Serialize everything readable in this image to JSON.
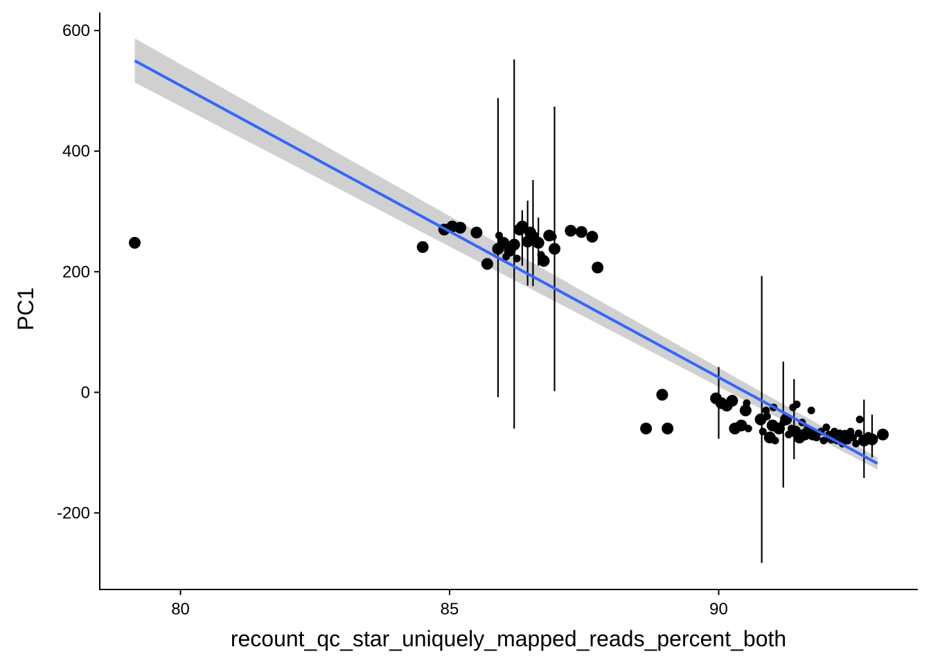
{
  "chart_data": {
    "type": "scatter",
    "title": "",
    "xlabel": "recount_qc_star_uniquely_mapped_reads_percent_both",
    "ylabel": "PC1",
    "xlim": [
      78.5,
      93.7
    ],
    "ylim": [
      -327,
      630
    ],
    "x_ticks": [
      80,
      85,
      90
    ],
    "x_tick_labels": [
      "80",
      "85",
      "90"
    ],
    "y_ticks": [
      600,
      400,
      200,
      0,
      -200
    ],
    "y_tick_labels": [
      "600",
      "400",
      "200",
      "0",
      "-200"
    ],
    "grid": false,
    "legend": "none",
    "colors": {
      "points": "#000000",
      "fit_line": "#3366FF",
      "ci_band": "#C8C8C8"
    },
    "fit": {
      "method": "lm",
      "x": [
        79.15,
        92.95
      ],
      "y": [
        550,
        -118
      ],
      "ci_upper": [
        587,
        -108
      ],
      "ci_lower": [
        514,
        -128
      ]
    },
    "points": [
      {
        "x": 79.15,
        "y": 248,
        "size": "large"
      },
      {
        "x": 84.5,
        "y": 241,
        "size": "large"
      },
      {
        "x": 84.9,
        "y": 270,
        "size": "large"
      },
      {
        "x": 85.05,
        "y": 275,
        "size": "large"
      },
      {
        "x": 85.2,
        "y": 273,
        "size": "large"
      },
      {
        "x": 85.5,
        "y": 265,
        "size": "large"
      },
      {
        "x": 85.7,
        "y": 213,
        "size": "large"
      },
      {
        "x": 85.9,
        "y": 238,
        "size": "large"
      },
      {
        "x": 85.92,
        "y": 260,
        "size": "small"
      },
      {
        "x": 86.0,
        "y": 248,
        "size": "large"
      },
      {
        "x": 86.05,
        "y": 225,
        "size": "small"
      },
      {
        "x": 86.12,
        "y": 235,
        "size": "large"
      },
      {
        "x": 86.2,
        "y": 245,
        "size": "large"
      },
      {
        "x": 86.25,
        "y": 222,
        "size": "small"
      },
      {
        "x": 86.3,
        "y": 270,
        "size": "large"
      },
      {
        "x": 86.35,
        "y": 275,
        "size": "large"
      },
      {
        "x": 86.45,
        "y": 250,
        "size": "large"
      },
      {
        "x": 86.5,
        "y": 265,
        "size": "large"
      },
      {
        "x": 86.55,
        "y": 258,
        "size": "large"
      },
      {
        "x": 86.65,
        "y": 248,
        "size": "large"
      },
      {
        "x": 86.7,
        "y": 228,
        "size": "small"
      },
      {
        "x": 86.75,
        "y": 218,
        "size": "large"
      },
      {
        "x": 86.85,
        "y": 260,
        "size": "large"
      },
      {
        "x": 86.92,
        "y": 258,
        "size": "small"
      },
      {
        "x": 86.95,
        "y": 238,
        "size": "large"
      },
      {
        "x": 87.25,
        "y": 268,
        "size": "large"
      },
      {
        "x": 87.45,
        "y": 266,
        "size": "large"
      },
      {
        "x": 87.65,
        "y": 258,
        "size": "large"
      },
      {
        "x": 87.75,
        "y": 207,
        "size": "large"
      },
      {
        "x": 88.65,
        "y": -60,
        "size": "large"
      },
      {
        "x": 88.95,
        "y": -4,
        "size": "large"
      },
      {
        "x": 89.05,
        "y": -60,
        "size": "large"
      },
      {
        "x": 89.95,
        "y": -10,
        "size": "large"
      },
      {
        "x": 90.05,
        "y": -18,
        "size": "large"
      },
      {
        "x": 90.15,
        "y": -22,
        "size": "large"
      },
      {
        "x": 90.25,
        "y": -14,
        "size": "large"
      },
      {
        "x": 90.3,
        "y": -60,
        "size": "large"
      },
      {
        "x": 90.42,
        "y": -55,
        "size": "large"
      },
      {
        "x": 90.5,
        "y": -30,
        "size": "large"
      },
      {
        "x": 90.52,
        "y": -18,
        "size": "small"
      },
      {
        "x": 90.55,
        "y": -60,
        "size": "small"
      },
      {
        "x": 90.78,
        "y": -45,
        "size": "large"
      },
      {
        "x": 90.82,
        "y": -65,
        "size": "small"
      },
      {
        "x": 90.88,
        "y": -30,
        "size": "small"
      },
      {
        "x": 90.9,
        "y": -40,
        "size": "small"
      },
      {
        "x": 90.95,
        "y": -75,
        "size": "large"
      },
      {
        "x": 91.0,
        "y": -55,
        "size": "large"
      },
      {
        "x": 91.02,
        "y": -25,
        "size": "small"
      },
      {
        "x": 91.05,
        "y": -80,
        "size": "small"
      },
      {
        "x": 91.12,
        "y": -60,
        "size": "large"
      },
      {
        "x": 91.2,
        "y": -50,
        "size": "small"
      },
      {
        "x": 91.25,
        "y": -45,
        "size": "large"
      },
      {
        "x": 91.3,
        "y": -70,
        "size": "small"
      },
      {
        "x": 91.35,
        "y": -60,
        "size": "small"
      },
      {
        "x": 91.38,
        "y": -25,
        "size": "small"
      },
      {
        "x": 91.42,
        "y": -65,
        "size": "large"
      },
      {
        "x": 91.45,
        "y": -20,
        "size": "small"
      },
      {
        "x": 91.5,
        "y": -75,
        "size": "large"
      },
      {
        "x": 91.55,
        "y": -50,
        "size": "small"
      },
      {
        "x": 91.6,
        "y": -70,
        "size": "large"
      },
      {
        "x": 91.65,
        "y": -60,
        "size": "small"
      },
      {
        "x": 91.72,
        "y": -30,
        "size": "small"
      },
      {
        "x": 91.75,
        "y": -70,
        "size": "large"
      },
      {
        "x": 91.82,
        "y": -75,
        "size": "small"
      },
      {
        "x": 91.9,
        "y": -65,
        "size": "small"
      },
      {
        "x": 91.95,
        "y": -80,
        "size": "small"
      },
      {
        "x": 92.0,
        "y": -58,
        "size": "small"
      },
      {
        "x": 92.05,
        "y": -70,
        "size": "small"
      },
      {
        "x": 92.1,
        "y": -75,
        "size": "large"
      },
      {
        "x": 92.15,
        "y": -65,
        "size": "small"
      },
      {
        "x": 92.2,
        "y": -80,
        "size": "small"
      },
      {
        "x": 92.25,
        "y": -68,
        "size": "small"
      },
      {
        "x": 92.3,
        "y": -85,
        "size": "small"
      },
      {
        "x": 92.35,
        "y": -72,
        "size": "large"
      },
      {
        "x": 92.4,
        "y": -80,
        "size": "small"
      },
      {
        "x": 92.45,
        "y": -65,
        "size": "small"
      },
      {
        "x": 92.5,
        "y": -75,
        "size": "small"
      },
      {
        "x": 92.55,
        "y": -85,
        "size": "small"
      },
      {
        "x": 92.6,
        "y": -68,
        "size": "small"
      },
      {
        "x": 92.62,
        "y": -45,
        "size": "small"
      },
      {
        "x": 92.7,
        "y": -80,
        "size": "large"
      },
      {
        "x": 92.78,
        "y": -72,
        "size": "small"
      },
      {
        "x": 92.85,
        "y": -78,
        "size": "large"
      },
      {
        "x": 93.05,
        "y": -70,
        "size": "large"
      }
    ],
    "error_bars": [
      {
        "x": 85.9,
        "ymin": -8,
        "ymax": 488
      },
      {
        "x": 86.2,
        "ymin": -60,
        "ymax": 552
      },
      {
        "x": 86.35,
        "ymin": 210,
        "ymax": 302
      },
      {
        "x": 86.45,
        "ymin": 177,
        "ymax": 318
      },
      {
        "x": 86.55,
        "ymin": 176,
        "ymax": 352
      },
      {
        "x": 86.65,
        "ymin": 210,
        "ymax": 290
      },
      {
        "x": 86.95,
        "ymin": 2,
        "ymax": 474
      },
      {
        "x": 90.0,
        "ymin": -77,
        "ymax": 42
      },
      {
        "x": 90.8,
        "ymin": -283,
        "ymax": 193
      },
      {
        "x": 91.2,
        "ymin": -158,
        "ymax": 51
      },
      {
        "x": 91.4,
        "ymin": -111,
        "ymax": 22
      },
      {
        "x": 92.7,
        "ymin": -142,
        "ymax": -12
      },
      {
        "x": 92.85,
        "ymin": -108,
        "ymax": -37
      }
    ]
  }
}
